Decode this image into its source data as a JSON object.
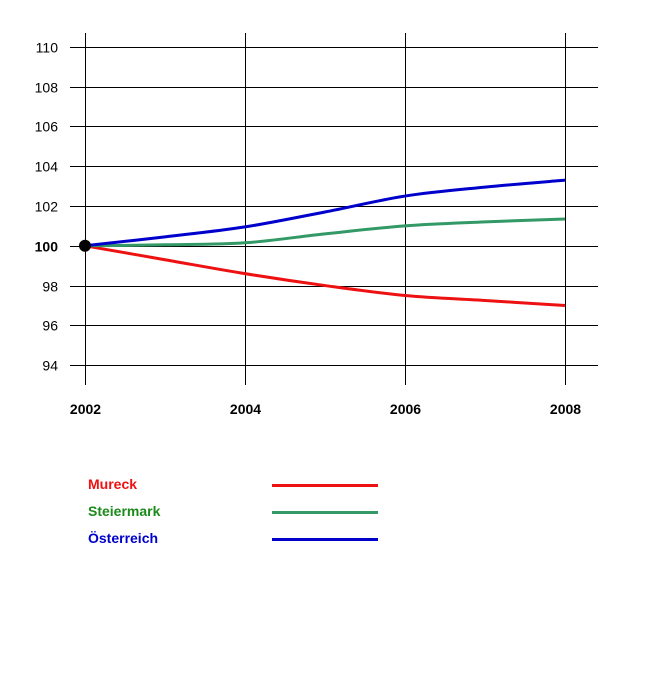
{
  "chart_data": {
    "type": "line",
    "title": "",
    "xlabel": "",
    "ylabel": "",
    "x": [
      2002,
      2003,
      2004,
      2005,
      2006,
      2007,
      2008
    ],
    "x_ticks": [
      "2002",
      "2004",
      "2006",
      "2008"
    ],
    "y_ticks": [
      "94",
      "96",
      "98",
      "100",
      "102",
      "104",
      "106",
      "108",
      "110"
    ],
    "ylim": [
      93,
      110.7
    ],
    "xlim": [
      2002,
      2008
    ],
    "grid": true,
    "baseline_marker": {
      "x": 2002,
      "y": 100
    },
    "legend_position": "bottom-left",
    "series": [
      {
        "name": "Mureck",
        "color": "#ee1111",
        "values": [
          100,
          99.3,
          98.6,
          98.0,
          97.5,
          97.25,
          97.0
        ]
      },
      {
        "name": "Steiermark",
        "color": "#339966",
        "values": [
          100,
          100.05,
          100.15,
          100.6,
          101.0,
          101.2,
          101.35
        ]
      },
      {
        "name": "Österreich",
        "color": "#0000cc",
        "values": [
          100,
          100.45,
          100.95,
          101.7,
          102.5,
          102.95,
          103.3
        ]
      }
    ]
  }
}
